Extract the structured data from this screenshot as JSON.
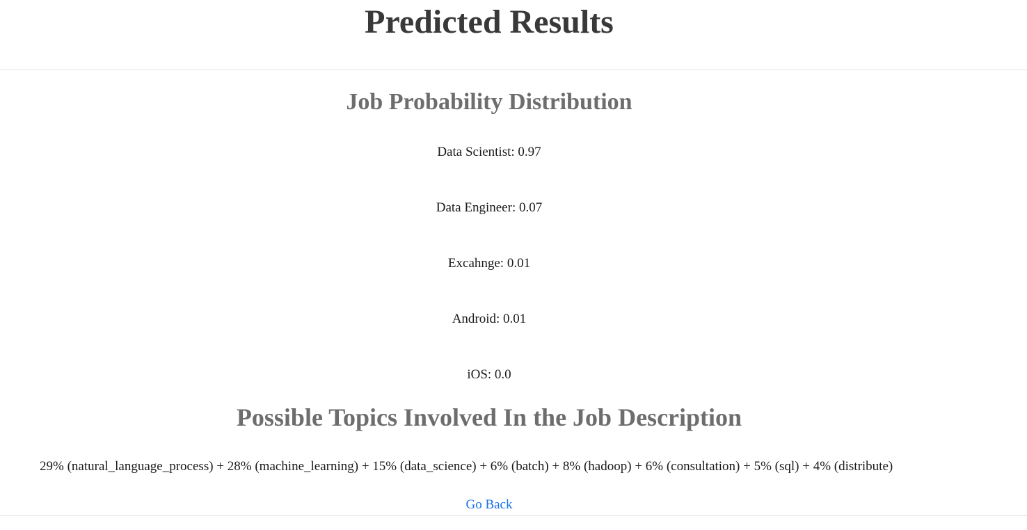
{
  "header": {
    "title": "Predicted Results"
  },
  "distribution": {
    "heading": "Job Probability Distribution",
    "items": [
      {
        "label": "Data Scientist: 0.97",
        "job": "Data Scientist",
        "probability": 0.97
      },
      {
        "label": "Data Engineer: 0.07",
        "job": "Data Engineer",
        "probability": 0.07
      },
      {
        "label": "Excahnge: 0.01",
        "job": "Excahnge",
        "probability": 0.01
      },
      {
        "label": "Android: 0.01",
        "job": "Android",
        "probability": 0.01
      },
      {
        "label": "iOS: 0.0",
        "job": "iOS",
        "probability": 0.0
      }
    ]
  },
  "topics": {
    "heading": "Possible Topics Involved In the Job Description",
    "text": "29% (natural_language_process) + 28% (machine_learning) + 15% (data_science) + 6% (batch) + 8% (hadoop) + 6% (consultation) + 5% (sql) + 4% (distribute)"
  },
  "nav": {
    "go_back_label": "Go Back"
  },
  "colors": {
    "title": "#393939",
    "heading": "#6d6d6d",
    "body_text": "#1a1a1a",
    "link": "#1a73e8",
    "divider": "#e2e2e2",
    "background": "#ffffff"
  }
}
